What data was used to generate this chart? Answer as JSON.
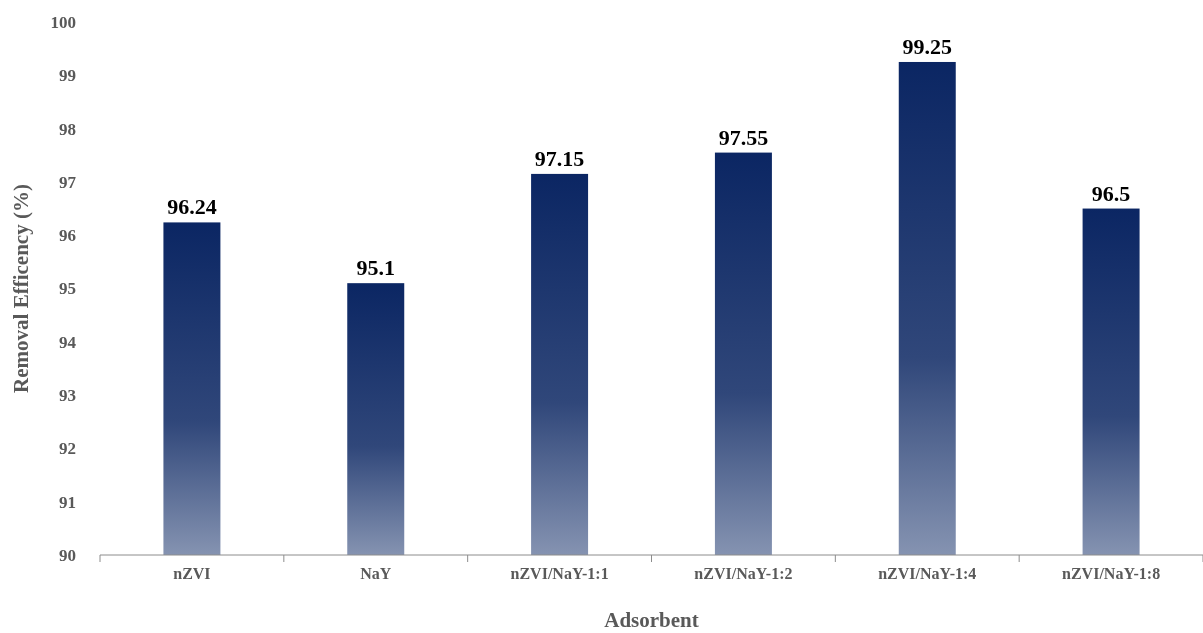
{
  "chart_data": {
    "type": "bar",
    "xlabel": "Adsorbent",
    "ylabel": "Removal Efficency (%)",
    "categories": [
      "nZVI",
      "NaY",
      "nZVI/NaY-1:1",
      "nZVI/NaY-1:2",
      "nZVI/NaY-1:4",
      "nZVI/NaY-1:8"
    ],
    "values": [
      96.24,
      95.1,
      97.15,
      97.55,
      99.25,
      96.5
    ],
    "color": "#0b2663",
    "ylim": [
      90,
      100
    ],
    "yticks": [
      90,
      91,
      92,
      93,
      94,
      95,
      96,
      97,
      98,
      99,
      100
    ],
    "grid": false,
    "data_labels": true
  }
}
